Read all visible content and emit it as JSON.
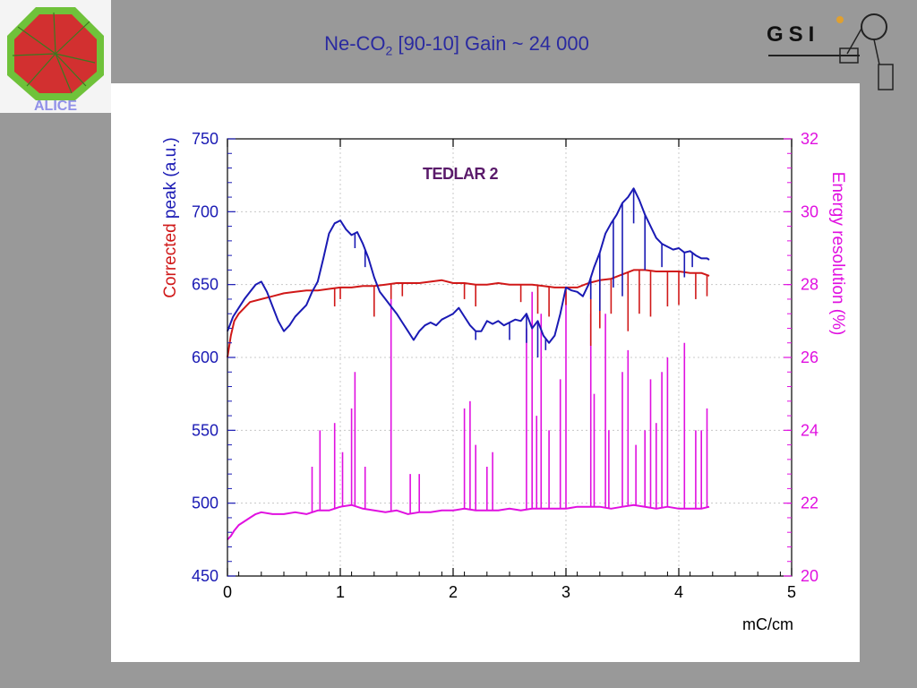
{
  "slide": {
    "title_main": "Ne-CO",
    "title_sub": "2",
    "title_rest": " [90-10] Gain ~ 24 000",
    "logo_left_text": "ALICE",
    "logo_right_text": "GSI"
  },
  "colors": {
    "background": "#999999",
    "title": "#2a2aa0",
    "blue": "#1a1ab4",
    "red": "#d01818",
    "magenta": "#e010e0",
    "annotation": "#5a1a6a"
  },
  "chart_data": {
    "type": "line",
    "title": "TEDLAR 2",
    "xlabel": "mC/cm",
    "ylabel_left_part1": "Corrected",
    "ylabel_left_part2": "peak (a.u.)",
    "ylabel_right": "Energy resolution (%)",
    "xlim": [
      0,
      5
    ],
    "ylim_left": [
      450,
      750
    ],
    "ylim_right": [
      20,
      32
    ],
    "x_ticks": [
      "0",
      "1",
      "2",
      "3",
      "4",
      "5"
    ],
    "y_left_ticks": [
      "450",
      "500",
      "550",
      "600",
      "650",
      "700",
      "750"
    ],
    "y_right_ticks": [
      "20",
      "22",
      "24",
      "26",
      "28",
      "30",
      "32"
    ],
    "grid": true,
    "series": [
      {
        "color": "#1a1ab4",
        "axis": "left",
        "x": [
          0,
          0.05,
          0.1,
          0.15,
          0.2,
          0.25,
          0.3,
          0.35,
          0.4,
          0.45,
          0.5,
          0.55,
          0.6,
          0.65,
          0.7,
          0.75,
          0.8,
          0.85,
          0.9,
          0.95,
          1.0,
          1.05,
          1.1,
          1.15,
          1.2,
          1.25,
          1.3,
          1.35,
          1.4,
          1.45,
          1.5,
          1.55,
          1.6,
          1.65,
          1.7,
          1.75,
          1.8,
          1.85,
          1.9,
          1.95,
          2.0,
          2.05,
          2.1,
          2.15,
          2.2,
          2.25,
          2.3,
          2.35,
          2.4,
          2.45,
          2.5,
          2.55,
          2.6,
          2.65,
          2.7,
          2.75,
          2.8,
          2.85,
          2.9,
          2.95,
          3.0,
          3.05,
          3.1,
          3.15,
          3.2,
          3.25,
          3.3,
          3.35,
          3.4,
          3.45,
          3.5,
          3.55,
          3.6,
          3.65,
          3.7,
          3.75,
          3.8,
          3.85,
          3.9,
          3.95,
          4.0,
          4.05,
          4.1,
          4.15,
          4.2,
          4.25,
          4.27
        ],
        "y": [
          618,
          628,
          634,
          640,
          645,
          650,
          652,
          645,
          635,
          625,
          618,
          622,
          628,
          632,
          636,
          645,
          652,
          668,
          685,
          692,
          694,
          688,
          684,
          686,
          678,
          668,
          655,
          645,
          640,
          635,
          630,
          624,
          618,
          612,
          618,
          622,
          624,
          622,
          626,
          628,
          630,
          634,
          628,
          622,
          618,
          618,
          625,
          623,
          625,
          622,
          624,
          626,
          625,
          630,
          620,
          625,
          615,
          610,
          615,
          630,
          648,
          646,
          645,
          642,
          650,
          662,
          672,
          685,
          692,
          698,
          706,
          710,
          716,
          708,
          698,
          690,
          682,
          678,
          676,
          674,
          675,
          672,
          673,
          670,
          668,
          668,
          667
        ],
        "spikes": [
          [
            1.13,
            675
          ],
          [
            1.22,
            662
          ],
          [
            2.2,
            612
          ],
          [
            2.5,
            612
          ],
          [
            2.65,
            610
          ],
          [
            2.75,
            600
          ],
          [
            2.82,
            605
          ],
          [
            3.22,
            640
          ],
          [
            3.3,
            632
          ],
          [
            3.42,
            648
          ],
          [
            3.5,
            642
          ],
          [
            3.6,
            692
          ],
          [
            3.7,
            660
          ],
          [
            3.85,
            662
          ],
          [
            4.05,
            655
          ],
          [
            4.12,
            662
          ]
        ]
      },
      {
        "color": "#d01818",
        "axis": "left",
        "x": [
          0,
          0.03,
          0.06,
          0.1,
          0.15,
          0.2,
          0.3,
          0.4,
          0.5,
          0.6,
          0.7,
          0.8,
          0.9,
          1.0,
          1.1,
          1.2,
          1.3,
          1.4,
          1.5,
          1.6,
          1.7,
          1.8,
          1.9,
          2.0,
          2.1,
          2.2,
          2.3,
          2.4,
          2.5,
          2.6,
          2.7,
          2.8,
          2.9,
          3.0,
          3.1,
          3.2,
          3.3,
          3.4,
          3.5,
          3.6,
          3.7,
          3.8,
          3.9,
          4.0,
          4.1,
          4.2,
          4.27
        ],
        "y": [
          600,
          615,
          625,
          630,
          634,
          638,
          640,
          642,
          644,
          645,
          646,
          646,
          647,
          648,
          648,
          649,
          649,
          650,
          651,
          651,
          651,
          652,
          653,
          651,
          651,
          650,
          650,
          651,
          650,
          650,
          650,
          649,
          648,
          648,
          648,
          651,
          653,
          654,
          657,
          660,
          660,
          659,
          659,
          659,
          658,
          658,
          656
        ],
        "spikes": [
          [
            0.95,
            635
          ],
          [
            1.0,
            640
          ],
          [
            1.3,
            628
          ],
          [
            1.45,
            640
          ],
          [
            1.55,
            642
          ],
          [
            2.1,
            640
          ],
          [
            2.2,
            635
          ],
          [
            2.6,
            638
          ],
          [
            2.75,
            630
          ],
          [
            2.85,
            628
          ],
          [
            3.0,
            636
          ],
          [
            3.22,
            608
          ],
          [
            3.3,
            620
          ],
          [
            3.4,
            630
          ],
          [
            3.55,
            618
          ],
          [
            3.65,
            630
          ],
          [
            3.75,
            628
          ],
          [
            3.9,
            635
          ],
          [
            4.0,
            636
          ],
          [
            4.15,
            640
          ],
          [
            4.25,
            642
          ]
        ]
      },
      {
        "color": "#e010e0",
        "axis": "right",
        "x": [
          0,
          0.03,
          0.06,
          0.1,
          0.15,
          0.2,
          0.25,
          0.3,
          0.4,
          0.5,
          0.6,
          0.7,
          0.8,
          0.9,
          1.0,
          1.1,
          1.2,
          1.3,
          1.4,
          1.5,
          1.6,
          1.7,
          1.8,
          1.9,
          2.0,
          2.1,
          2.2,
          2.3,
          2.4,
          2.5,
          2.6,
          2.7,
          2.8,
          2.9,
          3.0,
          3.1,
          3.2,
          3.3,
          3.4,
          3.5,
          3.6,
          3.7,
          3.8,
          3.9,
          4.0,
          4.1,
          4.2,
          4.27
        ],
        "y": [
          21.0,
          21.1,
          21.25,
          21.4,
          21.5,
          21.6,
          21.7,
          21.75,
          21.7,
          21.7,
          21.75,
          21.7,
          21.8,
          21.8,
          21.9,
          21.95,
          21.85,
          21.8,
          21.75,
          21.8,
          21.7,
          21.75,
          21.75,
          21.8,
          21.8,
          21.85,
          21.8,
          21.8,
          21.8,
          21.85,
          21.8,
          21.85,
          21.85,
          21.85,
          21.85,
          21.9,
          21.9,
          21.9,
          21.85,
          21.9,
          21.95,
          21.9,
          21.85,
          21.9,
          21.85,
          21.85,
          21.85,
          21.9
        ],
        "spikes": [
          [
            0.75,
            23.0
          ],
          [
            0.82,
            24.0
          ],
          [
            0.95,
            24.2
          ],
          [
            1.02,
            23.4
          ],
          [
            1.1,
            24.6
          ],
          [
            1.13,
            25.6
          ],
          [
            1.22,
            23.0
          ],
          [
            1.45,
            27.6
          ],
          [
            1.62,
            22.8
          ],
          [
            1.7,
            22.8
          ],
          [
            2.1,
            24.6
          ],
          [
            2.15,
            24.8
          ],
          [
            2.2,
            23.6
          ],
          [
            2.3,
            23.0
          ],
          [
            2.35,
            23.4
          ],
          [
            2.65,
            26.8
          ],
          [
            2.7,
            27.8
          ],
          [
            2.74,
            24.4
          ],
          [
            2.78,
            27.2
          ],
          [
            2.85,
            24.0
          ],
          [
            2.95,
            25.4
          ],
          [
            3.0,
            27.8
          ],
          [
            3.22,
            27.2
          ],
          [
            3.25,
            25.0
          ],
          [
            3.35,
            27.2
          ],
          [
            3.38,
            24.0
          ],
          [
            3.5,
            25.6
          ],
          [
            3.55,
            26.2
          ],
          [
            3.62,
            23.6
          ],
          [
            3.7,
            24.0
          ],
          [
            3.75,
            25.4
          ],
          [
            3.8,
            24.2
          ],
          [
            3.85,
            25.6
          ],
          [
            3.9,
            26.0
          ],
          [
            4.05,
            26.4
          ],
          [
            4.15,
            24.0
          ],
          [
            4.2,
            24.0
          ],
          [
            4.25,
            24.6
          ]
        ]
      }
    ]
  }
}
